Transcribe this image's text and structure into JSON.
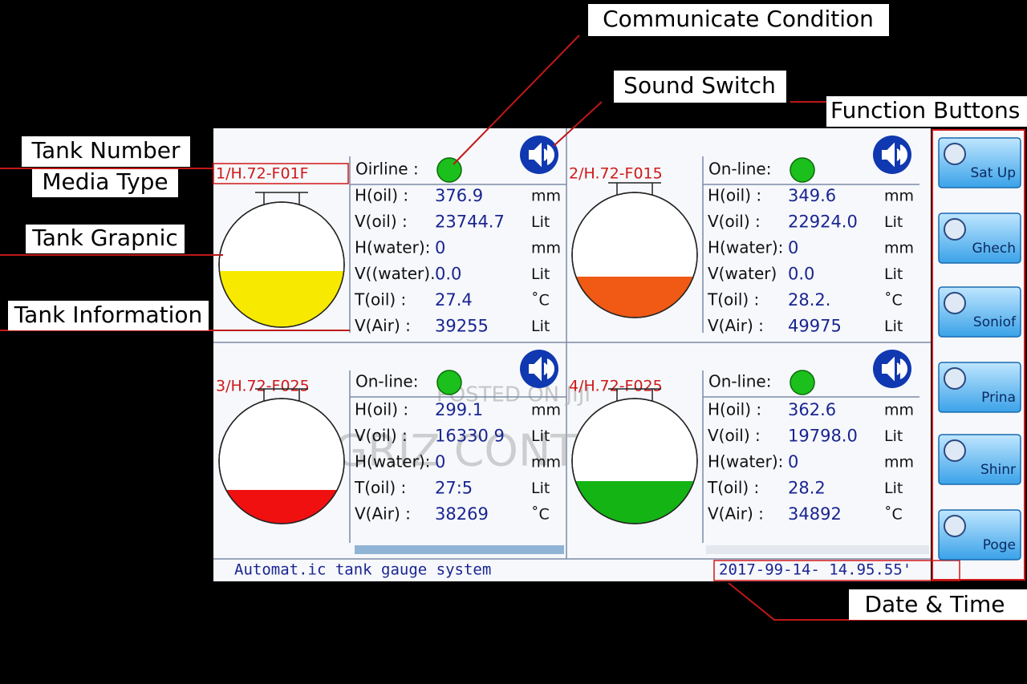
{
  "callouts": {
    "communicate": "Communicate Condition",
    "sound": "Sound Switch",
    "functions": "Function Buttons",
    "tank_number": "Tank Number",
    "media_type": "Media Type",
    "tank_graphic": "Tank Grapnic",
    "tank_info": "Tank Information",
    "date_time": "Date & Time"
  },
  "tanks": [
    {
      "id": "1/H.72-F01F",
      "status": "Oirline :",
      "fill_color": "#f7ea00",
      "rows": [
        [
          "H(oil) :",
          "376.9",
          "mm"
        ],
        [
          "V(oil) :",
          "23744.7",
          "Lit"
        ],
        [
          "H(water):",
          "0",
          "mm"
        ],
        [
          "V((water).",
          "0.0",
          "Lit"
        ],
        [
          "T(oil) :",
          "27.4",
          "˚C"
        ],
        [
          "V(Air) :",
          "39255",
          "Lit"
        ]
      ]
    },
    {
      "id": "2/H.72-F015",
      "status": "On-line:",
      "fill_color": "#f05a14",
      "rows": [
        [
          "H(oil) :",
          "349.6",
          "mm"
        ],
        [
          "V(oil) :",
          "22924.0",
          "Lit"
        ],
        [
          "H(water):",
          "0",
          "mm"
        ],
        [
          "V(water)",
          "0.0",
          "Lit"
        ],
        [
          "T(oil) :",
          "28.2.",
          "˚C"
        ],
        [
          "V(Air) :",
          "49975",
          "Lit"
        ]
      ]
    },
    {
      "id": "3/H.72-F025",
      "status": "On-line:",
      "fill_color": "#f01010",
      "rows": [
        [
          "H(oil) :",
          "299.1",
          "mm"
        ],
        [
          "V(oil) :",
          "16330 9",
          "Lit"
        ],
        [
          "H(water):",
          "0",
          "mm"
        ],
        [
          "T(oil) :",
          "27:5",
          "Lit"
        ],
        [
          "V(Air) :",
          "38269",
          "˚C"
        ]
      ]
    },
    {
      "id": "4/H.72-F025",
      "status": "On-line:",
      "fill_color": "#14b414",
      "rows": [
        [
          "H(oil) :",
          "362.6",
          "mm"
        ],
        [
          "V(oil) :",
          "19798.0",
          "Lit"
        ],
        [
          "H(water):",
          "0",
          "mm"
        ],
        [
          "T(oil) :",
          "28.2",
          "Lit"
        ],
        [
          "V(Air) :",
          "34892",
          "˚C"
        ]
      ]
    }
  ],
  "footer": {
    "system": "Automat.ic tank gauge system",
    "datetime": "2017-99-14- 14.95.55'"
  },
  "buttons": [
    "Sat Up",
    "Ghech",
    "Soniof",
    "Prina",
    "Shinr",
    "Poge"
  ],
  "watermark": {
    "posted": "POSTED ON JIJI",
    "brand": "GRIZ CONTROLS"
  }
}
